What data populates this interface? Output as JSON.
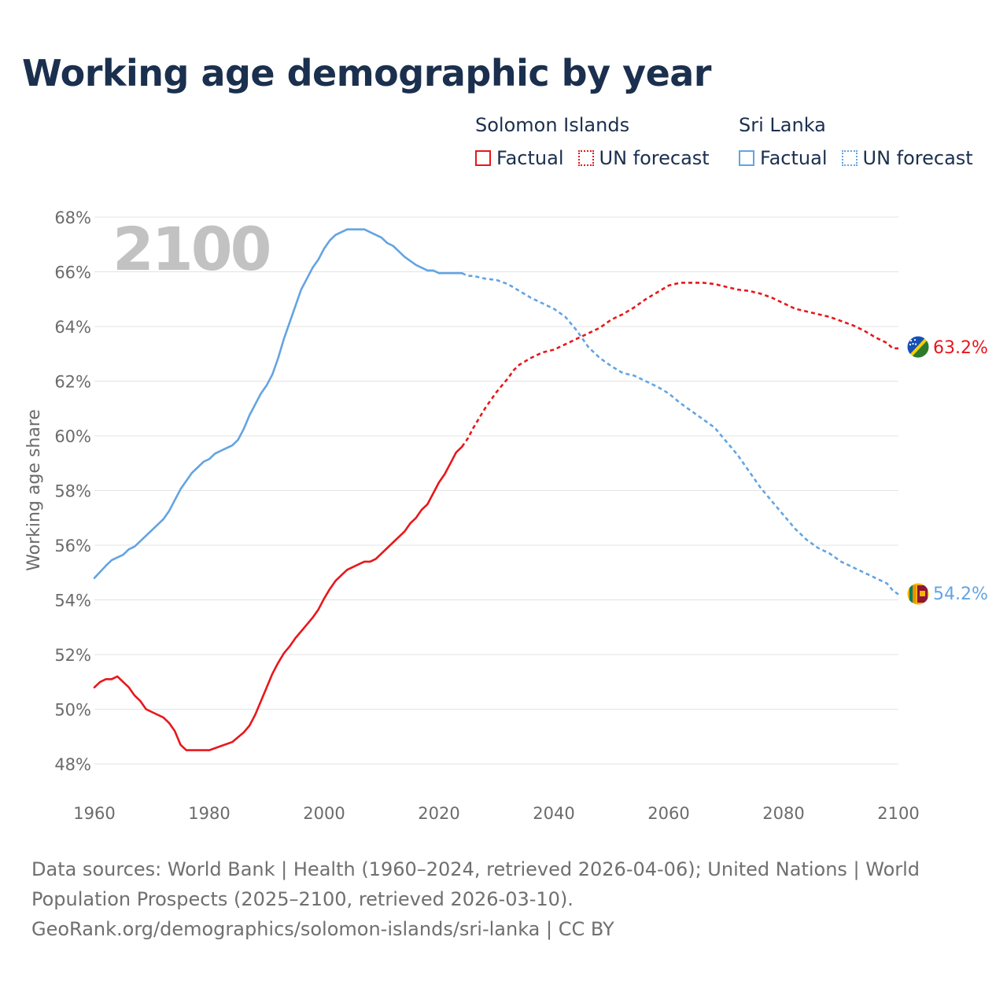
{
  "title": "Working age demographic by year",
  "legend": [
    {
      "group": "Solomon Islands",
      "factual_label": "Factual",
      "forecast_label": "UN forecast",
      "color": "#e8171b"
    },
    {
      "group": "Sri Lanka",
      "factual_label": "Factual",
      "forecast_label": "UN forecast",
      "color": "#63a4e3"
    }
  ],
  "year_watermark": "2100",
  "sources": {
    "line1": "Data sources: World Bank | Health (1960–2024, retrieved 2026-04-06); United Nations | World",
    "line2": "Population Prospects (2025–2100, retrieved 2026-03-10).",
    "line3": "GeoRank.org/demographics/solomon-islands/sri-lanka | CC BY"
  },
  "chart_data": {
    "type": "line",
    "title": "Working age demographic by year",
    "xlabel": "",
    "ylabel": "Working age share",
    "xlim": [
      1960,
      2100
    ],
    "ylim": [
      47,
      68
    ],
    "x_ticks": [
      1960,
      1980,
      2000,
      2020,
      2040,
      2060,
      2080,
      2100
    ],
    "y_ticks": [
      48,
      50,
      52,
      54,
      56,
      58,
      60,
      62,
      64,
      66,
      68
    ],
    "y_tick_suffix": "%",
    "grid": true,
    "forecast_start_year": 2024,
    "series": [
      {
        "name": "Solomon Islands",
        "color": "#e8171b",
        "end_label": "63.2%",
        "flag": "solomon-islands-flag",
        "x": [
          1960,
          1961,
          1962,
          1963,
          1964,
          1965,
          1966,
          1967,
          1968,
          1969,
          1970,
          1971,
          1972,
          1973,
          1974,
          1975,
          1976,
          1978,
          1980,
          1982,
          1984,
          1986,
          1987,
          1988,
          1989,
          1990,
          1991,
          1992,
          1993,
          1994,
          1995,
          1996,
          1997,
          1998,
          1999,
          2000,
          2001,
          2002,
          2003,
          2004,
          2005,
          2006,
          2007,
          2008,
          2009,
          2010,
          2011,
          2012,
          2013,
          2014,
          2015,
          2016,
          2017,
          2018,
          2019,
          2020,
          2021,
          2022,
          2023,
          2024,
          2025,
          2026,
          2028,
          2030,
          2032,
          2033,
          2034,
          2036,
          2038,
          2040,
          2042,
          2044,
          2046,
          2048,
          2050,
          2052,
          2054,
          2056,
          2058,
          2060,
          2062,
          2064,
          2066,
          2068,
          2070,
          2072,
          2074,
          2076,
          2078,
          2080,
          2082,
          2084,
          2086,
          2088,
          2090,
          2092,
          2094,
          2096,
          2098,
          2099,
          2100
        ],
        "y": [
          50.8,
          51.0,
          51.1,
          51.1,
          51.2,
          51.0,
          50.8,
          50.5,
          50.3,
          50.0,
          49.9,
          49.8,
          49.7,
          49.5,
          49.2,
          48.7,
          48.5,
          48.5,
          48.5,
          48.65,
          48.8,
          49.15,
          49.4,
          49.8,
          50.3,
          50.8,
          51.3,
          51.7,
          52.05,
          52.3,
          52.6,
          52.85,
          53.1,
          53.35,
          53.65,
          54.05,
          54.4,
          54.7,
          54.9,
          55.1,
          55.2,
          55.3,
          55.4,
          55.4,
          55.5,
          55.7,
          55.9,
          56.1,
          56.3,
          56.5,
          56.8,
          57.0,
          57.3,
          57.5,
          57.9,
          58.3,
          58.6,
          59.0,
          59.4,
          59.6,
          59.9,
          60.3,
          61.0,
          61.6,
          62.1,
          62.4,
          62.6,
          62.85,
          63.05,
          63.15,
          63.35,
          63.55,
          63.75,
          63.95,
          64.25,
          64.45,
          64.7,
          65.0,
          65.25,
          65.5,
          65.6,
          65.6,
          65.6,
          65.55,
          65.45,
          65.35,
          65.3,
          65.2,
          65.05,
          64.85,
          64.65,
          64.55,
          64.45,
          64.35,
          64.2,
          64.05,
          63.85,
          63.6,
          63.4,
          63.2,
          63.2
        ]
      },
      {
        "name": "Sri Lanka",
        "color": "#63a4e3",
        "end_label": "54.2%",
        "flag": "sri-lanka-flag",
        "x": [
          1960,
          1962,
          1963,
          1964,
          1965,
          1966,
          1967,
          1968,
          1970,
          1971,
          1972,
          1973,
          1974,
          1975,
          1976,
          1977,
          1978,
          1979,
          1980,
          1981,
          1982,
          1983,
          1984,
          1985,
          1986,
          1987,
          1988,
          1989,
          1990,
          1991,
          1992,
          1993,
          1994,
          1995,
          1996,
          1997,
          1998,
          1999,
          2000,
          2001,
          2002,
          2003,
          2004,
          2005,
          2006,
          2007,
          2008,
          2009,
          2010,
          2011,
          2012,
          2013,
          2014,
          2016,
          2018,
          2019,
          2020,
          2022,
          2024,
          2025,
          2026,
          2028,
          2030,
          2032,
          2034,
          2036,
          2038,
          2040,
          2042,
          2044,
          2046,
          2048,
          2050,
          2052,
          2054,
          2056,
          2058,
          2060,
          2062,
          2064,
          2066,
          2068,
          2070,
          2072,
          2074,
          2076,
          2078,
          2080,
          2082,
          2084,
          2086,
          2088,
          2090,
          2092,
          2094,
          2096,
          2098,
          2099,
          2100
        ],
        "y": [
          54.8,
          55.25,
          55.45,
          55.55,
          55.65,
          55.85,
          55.95,
          56.15,
          56.55,
          56.75,
          56.95,
          57.25,
          57.65,
          58.05,
          58.35,
          58.65,
          58.85,
          59.05,
          59.15,
          59.35,
          59.45,
          59.55,
          59.65,
          59.85,
          60.25,
          60.75,
          61.15,
          61.55,
          61.85,
          62.25,
          62.85,
          63.55,
          64.15,
          64.75,
          65.35,
          65.75,
          66.15,
          66.45,
          66.85,
          67.15,
          67.35,
          67.45,
          67.55,
          67.55,
          67.55,
          67.55,
          67.45,
          67.35,
          67.25,
          67.05,
          66.95,
          66.75,
          66.55,
          66.25,
          66.05,
          66.05,
          65.95,
          65.95,
          65.95,
          65.85,
          65.85,
          65.75,
          65.7,
          65.55,
          65.3,
          65.05,
          64.85,
          64.65,
          64.35,
          63.85,
          63.25,
          62.85,
          62.55,
          62.3,
          62.2,
          62.0,
          61.8,
          61.55,
          61.2,
          60.9,
          60.6,
          60.3,
          59.8,
          59.3,
          58.7,
          58.1,
          57.6,
          57.1,
          56.6,
          56.2,
          55.9,
          55.7,
          55.4,
          55.2,
          55.0,
          54.8,
          54.6,
          54.35,
          54.2
        ]
      }
    ]
  }
}
